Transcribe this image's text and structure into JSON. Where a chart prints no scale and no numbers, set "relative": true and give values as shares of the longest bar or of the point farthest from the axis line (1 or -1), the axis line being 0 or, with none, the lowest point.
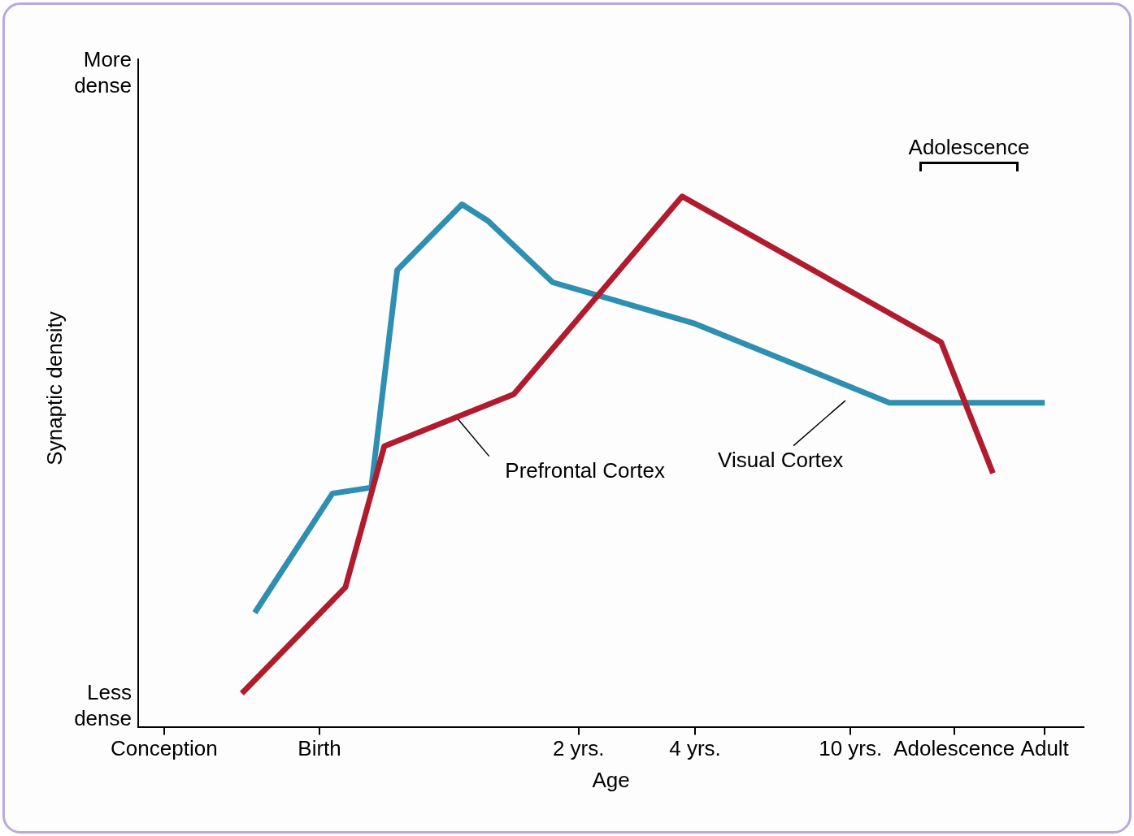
{
  "chart_data": {
    "type": "line",
    "relative": true,
    "xlabel": "Age",
    "ylabel": "Synaptic density",
    "categories": [
      null,
      null,
      "Conception",
      null,
      null,
      null,
      null,
      null,
      null,
      null,
      null,
      null,
      null,
      null,
      "Birth",
      null,
      null,
      null,
      null,
      null,
      null,
      null,
      null,
      null,
      null,
      null,
      null,
      null,
      null,
      null,
      null,
      null,
      null,
      null,
      "2 yrs.",
      null,
      null,
      null,
      null,
      null,
      null,
      null,
      null,
      "4 yrs.",
      null,
      null,
      null,
      null,
      null,
      null,
      null,
      null,
      null,
      null,
      null,
      "10 yrs.",
      null,
      null,
      null,
      null,
      null,
      null,
      null,
      "Adolescence",
      null,
      null,
      null,
      null,
      null,
      null,
      "Adult",
      null,
      null,
      null
    ],
    "series": [
      {
        "name": "Prefrontal Cortex",
        "color": "#b01c2e",
        "values": [
          null,
          null,
          null,
          null,
          null,
          null,
          null,
          null,
          0.063,
          null,
          null,
          null,
          null,
          null,
          null,
          null,
          0.263,
          null,
          null,
          0.529,
          null,
          null,
          null,
          null,
          null,
          null,
          null,
          null,
          null,
          0.627,
          null,
          null,
          null,
          null,
          null,
          null,
          null,
          null,
          null,
          null,
          null,
          null,
          1,
          null,
          null,
          null,
          null,
          null,
          null,
          null,
          null,
          null,
          null,
          null,
          null,
          null,
          null,
          null,
          null,
          null,
          null,
          null,
          0.725,
          null,
          null,
          null,
          0.478,
          null,
          null,
          null,
          null,
          null,
          null,
          null
        ]
      },
      {
        "name": "Visual Cortex",
        "color": "#2e8fb0",
        "values": [
          null,
          null,
          null,
          null,
          null,
          null,
          null,
          null,
          null,
          0.215,
          null,
          null,
          null,
          null,
          null,
          0.44,
          null,
          null,
          0.451,
          null,
          0.861,
          null,
          null,
          null,
          null,
          0.985,
          null,
          0.954,
          null,
          null,
          null,
          null,
          0.838,
          null,
          null,
          null,
          null,
          null,
          null,
          null,
          null,
          null,
          null,
          0.76,
          null,
          null,
          null,
          null,
          null,
          null,
          null,
          null,
          null,
          null,
          null,
          null,
          null,
          null,
          0.611,
          null,
          null,
          null,
          null,
          null,
          null,
          null,
          null,
          null,
          null,
          null,
          0.611,
          null,
          null,
          null
        ]
      }
    ],
    "annotations": [
      "More dense",
      "Less dense",
      "Adolescence"
    ],
    "legend": false,
    "grid": false,
    "marker": "none",
    "line_style": "solid"
  }
}
